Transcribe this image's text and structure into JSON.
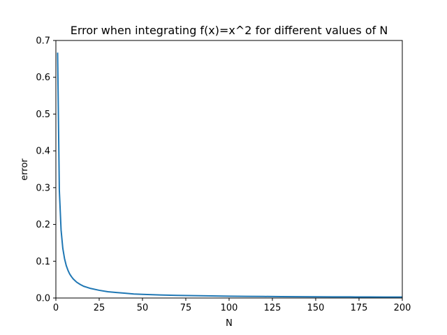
{
  "chart_data": {
    "type": "line",
    "title": "Error when integrating f(x)=x^2 for different values of N",
    "xlabel": "N",
    "ylabel": "error",
    "xlim": [
      0,
      200
    ],
    "ylim": [
      0,
      0.7
    ],
    "grid": false,
    "legend": "none",
    "x_ticks": [
      0,
      25,
      50,
      75,
      100,
      125,
      150,
      175,
      200
    ],
    "y_ticks": [
      0.0,
      0.1,
      0.2,
      0.3,
      0.4,
      0.5,
      0.6,
      0.7
    ],
    "series": [
      {
        "color": "#1f77b4",
        "x": [
          1,
          2,
          3,
          4,
          5,
          6,
          7,
          8,
          9,
          10,
          12,
          14,
          16,
          18,
          20,
          25,
          30,
          35,
          40,
          45,
          50,
          60,
          70,
          80,
          90,
          100,
          110,
          120,
          130,
          140,
          150,
          160,
          170,
          180,
          190,
          200
        ],
        "values": [
          0.667,
          0.292,
          0.185,
          0.135,
          0.107,
          0.088,
          0.075,
          0.065,
          0.058,
          0.052,
          0.043,
          0.037,
          0.032,
          0.029,
          0.026,
          0.021,
          0.017,
          0.015,
          0.013,
          0.011,
          0.01,
          0.0084,
          0.0072,
          0.0063,
          0.0056,
          0.005,
          0.0046,
          0.0042,
          0.0039,
          0.0036,
          0.0033,
          0.0031,
          0.003,
          0.0028,
          0.0026,
          0.0025
        ]
      }
    ]
  }
}
